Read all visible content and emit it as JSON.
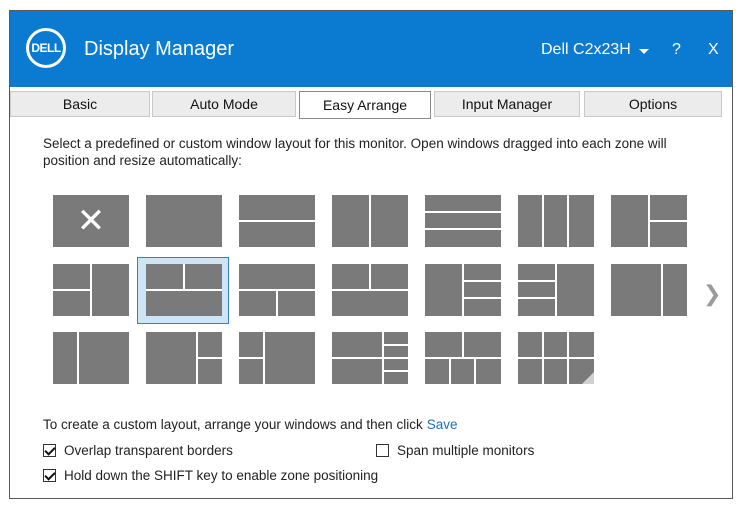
{
  "titlebar": {
    "logo_text": "DELL",
    "app_title": "Display Manager",
    "monitor_name": "Dell C2x23H",
    "help_label": "?",
    "close_label": "X"
  },
  "tabs": [
    {
      "label": "Basic"
    },
    {
      "label": "Auto Mode"
    },
    {
      "label": "Easy Arrange",
      "active": true
    },
    {
      "label": "Input Manager"
    },
    {
      "label": "Options"
    }
  ],
  "intro_text": "Select a predefined or custom window layout for this monitor.  Open windows dragged into each zone will position and resize automatically:",
  "layouts": {
    "rows": [
      [
        "none",
        "full",
        "two-rows",
        "two-cols",
        "three-rows",
        "three-cols",
        "left-col-right-two"
      ],
      [
        "left-two-right-col",
        "four-grid",
        "top-one-bottom-two",
        "top-two-bottom-one",
        "left-col-right-three",
        "left-three-right-col",
        "left-wide-right-narrow"
      ],
      [
        "left-narrow-right-wide",
        "left-wide-right-two",
        "left-two-right-wide",
        "custom-a",
        "custom-b",
        "custom-grid"
      ]
    ],
    "selected": "four-grid",
    "next_icon": "chevron-right-icon"
  },
  "custom_layout": {
    "text": "To create a custom layout, arrange your windows and then click",
    "save_label": "Save"
  },
  "options": {
    "overlap_label": "Overlap transparent borders",
    "overlap_checked": true,
    "span_label": "Span multiple monitors",
    "span_checked": false,
    "shift_label": "Hold down the SHIFT key to enable zone positioning",
    "shift_checked": true
  },
  "colors": {
    "titlebar": "#0a7bd0",
    "zone": "#7a7a7a",
    "selected_fill": "#cde5f7",
    "link": "#1a6fc0"
  }
}
